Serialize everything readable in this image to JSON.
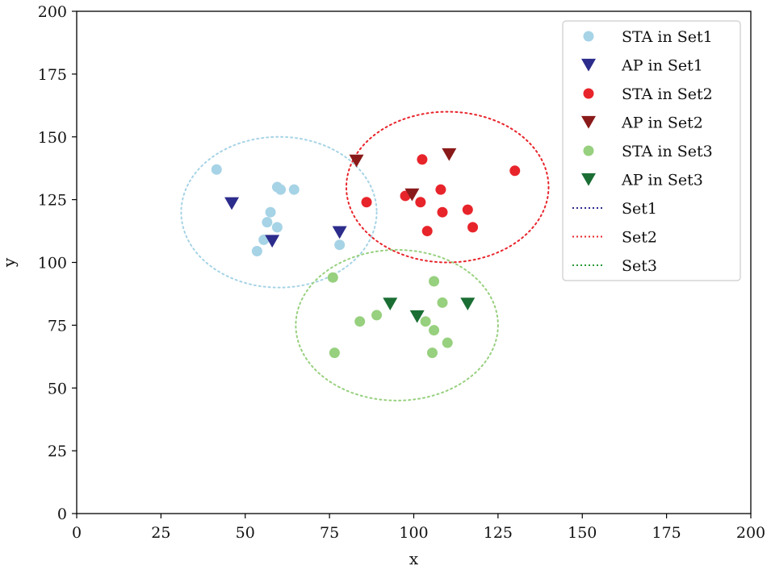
{
  "chart_data": {
    "type": "scatter",
    "title": "",
    "xlabel": "x",
    "ylabel": "y",
    "xlim": [
      0,
      200
    ],
    "ylim": [
      0,
      200
    ],
    "xticks": [
      0,
      25,
      50,
      75,
      100,
      125,
      150,
      175,
      200
    ],
    "yticks": [
      0,
      25,
      50,
      75,
      100,
      125,
      150,
      175,
      200
    ],
    "grid": false,
    "legend_position": "top-right",
    "series": [
      {
        "name": "STA in Set1",
        "marker": "circle",
        "color": "#a6d3e6",
        "points": [
          [
            41.5,
            137
          ],
          [
            57.5,
            120
          ],
          [
            59.5,
            130
          ],
          [
            60.5,
            129
          ],
          [
            64.5,
            129
          ],
          [
            56.5,
            116
          ],
          [
            59.5,
            114
          ],
          [
            55.5,
            109
          ],
          [
            53.5,
            104.5
          ],
          [
            78,
            107
          ]
        ]
      },
      {
        "name": "AP in Set1",
        "marker": "triangle-down",
        "color": "#2c2c8c",
        "points": [
          [
            46,
            123.5
          ],
          [
            58,
            108.5
          ],
          [
            78,
            112
          ]
        ]
      },
      {
        "name": "STA in Set2",
        "marker": "circle",
        "color": "#e8242b",
        "points": [
          [
            102.5,
            141
          ],
          [
            130,
            136.5
          ],
          [
            108,
            129
          ],
          [
            97.5,
            126.5
          ],
          [
            86,
            124
          ],
          [
            102,
            124
          ],
          [
            116,
            121
          ],
          [
            108.5,
            120
          ],
          [
            117.5,
            114
          ],
          [
            104,
            112.5
          ]
        ]
      },
      {
        "name": "AP in Set2",
        "marker": "triangle-down",
        "color": "#8a1a1a",
        "points": [
          [
            83,
            140.5
          ],
          [
            110.5,
            143
          ],
          [
            99.5,
            127
          ]
        ]
      },
      {
        "name": "STA in Set3",
        "marker": "circle",
        "color": "#97d07e",
        "points": [
          [
            76,
            94
          ],
          [
            106,
            92.5
          ],
          [
            108.5,
            84
          ],
          [
            89,
            79
          ],
          [
            84,
            76.5
          ],
          [
            103.5,
            76.5
          ],
          [
            106,
            73
          ],
          [
            110,
            68
          ],
          [
            76.5,
            64
          ],
          [
            105.5,
            64
          ]
        ]
      },
      {
        "name": "AP in Set3",
        "marker": "triangle-down",
        "color": "#1a6e34",
        "points": [
          [
            93,
            83.5
          ],
          [
            101,
            78.5
          ],
          [
            116,
            83.5
          ]
        ]
      },
      {
        "name": "Set1",
        "marker": "dotted-ellipse",
        "color": "#a6d3e6",
        "legend_color": "#2c2c8c",
        "center": [
          60,
          120
        ],
        "radius": [
          29,
          30
        ]
      },
      {
        "name": "Set2",
        "marker": "dotted-ellipse",
        "color": "#e8242b",
        "legend_color": "#e8242b",
        "center": [
          110,
          130
        ],
        "radius": [
          30,
          30
        ]
      },
      {
        "name": "Set3",
        "marker": "dotted-ellipse",
        "color": "#97d07e",
        "legend_color": "#2a9a38",
        "center": [
          95,
          75
        ],
        "radius": [
          30,
          30
        ]
      }
    ]
  }
}
